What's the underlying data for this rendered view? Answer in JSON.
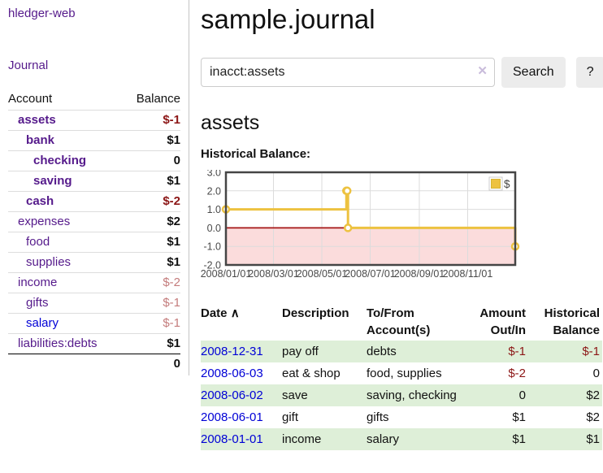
{
  "sidebar": {
    "brand": "hledger-web",
    "journal_link": "Journal",
    "accounts": {
      "col_account": "Account",
      "col_balance": "Balance",
      "rows": [
        {
          "name": "assets",
          "depth": 1,
          "emphasized": true,
          "balance": "$-1",
          "balance_tone": "neg"
        },
        {
          "name": "bank",
          "depth": 2,
          "emphasized": true,
          "balance": "$1",
          "balance_tone": "normal"
        },
        {
          "name": "checking",
          "depth": 3,
          "emphasized": true,
          "balance": "0",
          "balance_tone": "normal"
        },
        {
          "name": "saving",
          "depth": 3,
          "emphasized": true,
          "balance": "$1",
          "balance_tone": "normal"
        },
        {
          "name": "cash",
          "depth": 2,
          "emphasized": true,
          "balance": "$-2",
          "balance_tone": "neg"
        },
        {
          "name": "expenses",
          "depth": 1,
          "emphasized": false,
          "balance": "$2",
          "balance_tone": "normal"
        },
        {
          "name": "food",
          "depth": 2,
          "emphasized": false,
          "balance": "$1",
          "balance_tone": "normal"
        },
        {
          "name": "supplies",
          "depth": 2,
          "emphasized": false,
          "balance": "$1",
          "balance_tone": "normal"
        },
        {
          "name": "income",
          "depth": 1,
          "emphasized": false,
          "balance": "$-2",
          "balance_tone": "neg-dim"
        },
        {
          "name": "gifts",
          "depth": 2,
          "emphasized": false,
          "balance": "$-1",
          "balance_tone": "neg-dim"
        },
        {
          "name": "salary",
          "depth": 2,
          "emphasized": false,
          "balance": "$-1",
          "balance_tone": "neg-dim",
          "link_tone": "blue"
        },
        {
          "name": "liabilities:debts",
          "depth": 1,
          "emphasized": false,
          "balance": "$1",
          "balance_tone": "normal"
        }
      ],
      "total": "0"
    }
  },
  "main": {
    "title": "sample.journal",
    "search": {
      "value": "inacct:assets",
      "clear_icon": "✕",
      "button_label": "Search",
      "help_label": "?"
    },
    "heading": "assets",
    "chart_label": "Historical Balance:",
    "register": {
      "columns": [
        "Date",
        "Description",
        "To/From Account(s)",
        "Amount Out/In",
        "Historical Balance"
      ],
      "sort_icon": "∧",
      "rows": [
        {
          "date": "2008-12-31",
          "description": "pay off",
          "accounts": "debts",
          "amount": "$-1",
          "amount_tone": "neg",
          "balance": "$-1",
          "balance_tone": "neg",
          "shaded": true
        },
        {
          "date": "2008-06-03",
          "description": "eat & shop",
          "accounts": "food, supplies",
          "amount": "$-2",
          "amount_tone": "neg",
          "balance": "0",
          "balance_tone": "normal",
          "shaded": false
        },
        {
          "date": "2008-06-02",
          "description": "save",
          "accounts": "saving, checking",
          "amount": "0",
          "amount_tone": "normal",
          "balance": "$2",
          "balance_tone": "normal",
          "shaded": true
        },
        {
          "date": "2008-06-01",
          "description": "gift",
          "accounts": "gifts",
          "amount": "$1",
          "amount_tone": "normal",
          "balance": "$2",
          "balance_tone": "normal",
          "shaded": false
        },
        {
          "date": "2008-01-01",
          "description": "income",
          "accounts": "salary",
          "amount": "$1",
          "amount_tone": "normal",
          "balance": "$1",
          "balance_tone": "normal",
          "shaded": true
        }
      ]
    }
  },
  "chart_data": {
    "type": "line",
    "title": "Historical Balance",
    "series": [
      {
        "name": "$",
        "color": "#edc240",
        "step": true,
        "points": [
          [
            "2008-01-01",
            1
          ],
          [
            "2008-06-01",
            2
          ],
          [
            "2008-06-02",
            2
          ],
          [
            "2008-06-03",
            0
          ],
          [
            "2008-12-31",
            -1
          ]
        ]
      }
    ],
    "xmin": "2008-01-01",
    "xmax": "2008-12-31",
    "ylim": [
      -2,
      3
    ],
    "yticks": [
      3,
      2,
      1,
      0,
      -1,
      -2
    ],
    "ytick_labels": [
      "3.0",
      "2.0",
      "1.0",
      "0.0",
      "-1.0",
      "-2.0"
    ],
    "xticks": [
      "2008/01/01",
      "2008/03/01",
      "2008/05/01",
      "2008/07/01",
      "2008/09/01",
      "2008/11/01"
    ],
    "grid": true,
    "legend_position": "top-right",
    "legend_label": "$"
  },
  "colors": {
    "link_purple": "#551a8b",
    "link_blue": "#0000d6",
    "negative": "#8c1616",
    "negative_dim": "#c47c7c",
    "row_green": "#deefd8",
    "chart_line": "#edc240",
    "chart_negative_region": "#fbdcdc",
    "chart_zero_line": "#a51616",
    "chart_border": "#454545",
    "gridline": "#dcdcdc"
  }
}
